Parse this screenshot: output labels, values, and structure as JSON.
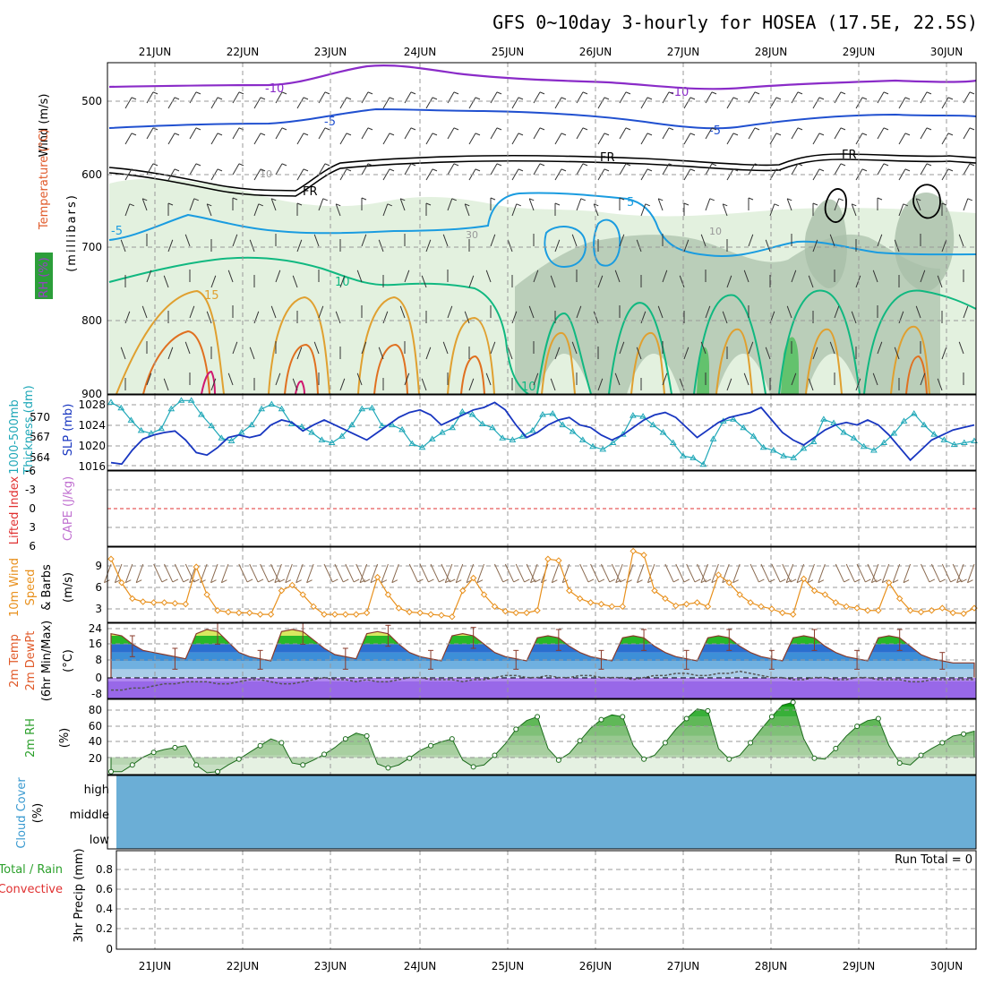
{
  "title": "GFS 0~10day 3-hourly for HOSEA (17.5E, 22.5S)",
  "dates": [
    "21JUN",
    "22JUN",
    "23JUN",
    "24JUN",
    "25JUN",
    "26JUN",
    "27JUN",
    "28JUN",
    "29JUN",
    "30JUN"
  ],
  "colors": {
    "rh_fill": "#dff0dc",
    "rh_dark": "#a9bfa9",
    "temp_neg10": "#8a2bc8",
    "temp_neg5": "#2050d0",
    "temp_5": "#1a9ce0",
    "temp_10": "#10b880",
    "temp_15": "#e0a030",
    "temp_20": "#e07020",
    "thickness": "#20a8b8",
    "slp": "#1836c0",
    "wind": "#e8901c",
    "precip_frame": "#ffffff",
    "cloud": "#6baed6"
  },
  "panels": {
    "upper": {
      "ylabel_wind": "Wind (m/s)",
      "ylabel_temp": "Temperature (°C)",
      "ylabel_rh": "RH (%)",
      "ylabel_press": "(millibars)",
      "ticks": [
        "500",
        "600",
        "700",
        "800",
        "900"
      ],
      "contour_labels": {
        "m10a": "-10",
        "m10b": "-10",
        "m5a": "-5",
        "m5b": "-5",
        "m5c": "-5",
        "p5": "5",
        "p10a": "10",
        "p10b": "10",
        "p15": "15",
        "fr1": "FR",
        "fr2": "FR",
        "fr3": "FR",
        "rh10": "10",
        "rh30": "30",
        "rh10b": "10"
      }
    },
    "thick": {
      "ylabel1": "1000-500mb",
      "ylabel2": "Thickness (dm)",
      "ylabel3": "SLP (mb)",
      "ticks_left": [
        "570",
        "567",
        "564"
      ],
      "ticks_right": [
        "1028",
        "1024",
        "1020",
        "1016"
      ]
    },
    "cape": {
      "ylabel1": "Lifted Index",
      "ylabel2": "CAPE (J/kg)",
      "ticks": [
        "-6",
        "-3",
        "0",
        "3",
        "6"
      ]
    },
    "wind10": {
      "ylabel1": "10m Wind",
      "ylabel2": "Speed",
      "ylabel3": "& Barbs",
      "ylabel4": "(m/s)",
      "ticks": [
        "9",
        "6",
        "3"
      ]
    },
    "temp2m": {
      "ylabel1": "2m Temp",
      "ylabel2": "2m DewPt",
      "ylabel3": "(6hr Min/Max)",
      "ylabel4": "(°C)",
      "ticks": [
        "24",
        "16",
        "8",
        "0",
        "-8"
      ]
    },
    "rh2m": {
      "ylabel1": "2m RH",
      "ylabel2": "(%)",
      "ticks": [
        "80",
        "60",
        "40",
        "20"
      ]
    },
    "cloud": {
      "ylabel1": "Cloud Cover",
      "ylabel2": "(%)",
      "levels": [
        "high",
        "middle",
        "low"
      ]
    },
    "precip": {
      "ylabel1": "Total / Rain",
      "ylabel2": "Convective",
      "ylabel3": "3hr Precip (mm)",
      "ticks": [
        "0.8",
        "0.6",
        "0.4",
        "0.2",
        "0"
      ],
      "run_total": "Run Total = 0"
    }
  },
  "chart_data": [
    {
      "type": "line",
      "panel": "Thickness / SLP",
      "series": [
        {
          "name": "1000-500mb Thickness (dm)",
          "values": [
            570.2,
            569.6,
            568.3,
            567.2,
            566.9,
            567.4,
            569.5,
            570.4,
            570.4,
            568.9,
            567.7,
            566.4,
            566.1,
            567.0,
            567.8,
            569.5,
            570.0,
            569.5,
            567.9,
            567.6,
            567.0,
            566.2,
            565.9,
            566.6,
            567.8,
            569.5,
            569.6,
            567.7,
            567.8,
            567.3,
            565.8,
            565.4,
            566.3,
            567.0,
            567.5,
            569.2,
            568.9,
            567.9,
            567.5,
            566.4,
            566.2,
            566.6,
            567.2,
            568.9,
            569.0,
            567.8,
            567.1,
            566.2,
            565.5,
            565.2,
            565.9,
            566.8,
            568.8,
            568.7,
            567.8,
            567.0,
            565.9,
            564.5,
            564.3,
            563.6,
            566.3,
            568.2,
            568.4,
            567.5,
            566.6,
            565.4,
            565.1,
            564.5,
            564.3,
            565.3,
            566.0,
            568.4,
            568.0,
            567.0,
            566.4,
            565.5,
            565.1,
            565.9,
            566.9,
            568.2,
            569.0,
            567.8,
            566.8,
            566.2,
            565.7,
            565.9,
            566.1
          ]
        },
        {
          "name": "SLP (mb)",
          "values": [
            1016.5,
            1016.2,
            1019.0,
            1021.2,
            1022.0,
            1022.5,
            1022.8,
            1021.0,
            1018.5,
            1018.0,
            1019.5,
            1021.5,
            1022.0,
            1021.5,
            1022.0,
            1024.0,
            1025.0,
            1024.5,
            1022.8,
            1024.0,
            1025.0,
            1024.0,
            1023.0,
            1022.0,
            1021.0,
            1022.5,
            1024.0,
            1025.5,
            1026.5,
            1027.0,
            1026.0,
            1024.0,
            1025.0,
            1026.0,
            1027.0,
            1027.5,
            1028.5,
            1027.0,
            1024.0,
            1021.5,
            1022.5,
            1024.0,
            1025.0,
            1025.5,
            1024.0,
            1023.5,
            1022.0,
            1021.0,
            1022.0,
            1023.5,
            1025.0,
            1026.0,
            1026.5,
            1025.5,
            1023.5,
            1021.5,
            1023.0,
            1024.5,
            1025.5,
            1026.0,
            1026.5,
            1027.5,
            1025.0,
            1022.5,
            1021.0,
            1020.0,
            1021.5,
            1023.0,
            1024.0,
            1024.5,
            1024.0,
            1025.0,
            1024.0,
            1022.0,
            1019.5,
            1017.0,
            1019.0,
            1021.0,
            1022.0,
            1023.0,
            1023.5,
            1024.0
          ]
        }
      ],
      "ylim_left": [
        563,
        571
      ],
      "ylim_right": [
        1015,
        1030
      ]
    },
    {
      "type": "line",
      "panel": "10m Wind Speed",
      "series": [
        {
          "name": "10m Wind Speed (m/s)",
          "values": [
            9.0,
            6.0,
            4.0,
            3.6,
            3.5,
            3.5,
            3.4,
            3.3,
            8.0,
            4.5,
            2.5,
            2.3,
            2.2,
            2.2,
            2.0,
            2.0,
            5.0,
            5.7,
            4.5,
            3.0,
            2.0,
            2.0,
            2.0,
            2.0,
            2.2,
            6.7,
            4.5,
            2.8,
            2.3,
            2.2,
            2.0,
            1.9,
            1.7,
            5.0,
            6.6,
            4.5,
            3.0,
            2.4,
            2.2,
            2.2,
            2.5,
            9.0,
            8.8,
            5.0,
            4.0,
            3.5,
            3.3,
            3.0,
            3.0,
            10.0,
            9.5,
            5.0,
            4.0,
            3.1,
            3.3,
            3.5,
            3.0,
            7.0,
            6.0,
            4.5,
            3.5,
            3.0,
            2.7,
            2.2,
            2.0,
            6.5,
            5.0,
            4.5,
            3.5,
            3.0,
            2.8,
            2.5,
            2.5,
            6.0,
            4.0,
            2.5,
            2.3,
            2.5,
            2.8,
            2.2,
            2.1,
            2.8
          ]
        }
      ],
      "ylim": [
        1,
        10.5
      ]
    },
    {
      "type": "area",
      "panel": "2m Temp / DewPt",
      "series": [
        {
          "name": "2m Temp (°C)",
          "values": [
            21,
            20,
            16,
            13,
            12,
            11,
            10,
            9,
            21,
            23,
            22,
            17,
            12,
            10,
            9,
            8,
            22,
            23,
            22,
            18,
            14,
            11,
            10,
            9,
            21,
            22,
            21,
            16,
            12,
            10,
            9,
            8,
            20,
            21,
            20,
            16,
            12,
            10,
            9,
            8,
            19,
            20,
            19,
            15,
            12,
            10,
            9,
            8,
            19,
            20,
            19,
            15,
            12,
            10,
            9,
            8,
            19,
            20,
            19,
            15,
            12,
            10,
            9,
            8,
            19,
            20,
            19,
            15,
            12,
            10,
            9,
            8,
            19,
            20,
            19,
            15,
            11,
            9,
            8,
            7,
            7,
            7
          ]
        },
        {
          "name": "2m DewPt (°C)",
          "values": [
            -6,
            -6,
            -5,
            -5,
            -4,
            -3,
            -3,
            -2,
            -2,
            -2,
            -3,
            -3,
            -2,
            -1,
            -1,
            -2,
            -3,
            -3,
            -2,
            -1,
            0,
            -1,
            -1,
            -2,
            -1,
            -2,
            -2,
            -1,
            0,
            0,
            -1,
            -1,
            -1,
            -2,
            -1,
            -1,
            0,
            1,
            1,
            0,
            0,
            1,
            0,
            0,
            1,
            1,
            0,
            0,
            0,
            -1,
            0,
            1,
            1,
            2,
            2,
            1,
            1,
            2,
            2,
            3,
            2,
            1,
            0,
            0,
            -1,
            -1,
            0,
            0,
            -1,
            -1,
            0,
            0,
            -1,
            -1,
            -1,
            -2,
            -2,
            -1,
            -1,
            -1,
            -1,
            -1
          ]
        }
      ],
      "ylim": [
        -10,
        26
      ]
    },
    {
      "type": "area",
      "panel": "2m RH",
      "series": [
        {
          "name": "2m RH (%)",
          "values": [
            13,
            13,
            20,
            28,
            33,
            36,
            38,
            40,
            20,
            12,
            13,
            20,
            26,
            33,
            40,
            47,
            43,
            22,
            20,
            25,
            31,
            38,
            47,
            53,
            50,
            21,
            17,
            20,
            27,
            35,
            40,
            44,
            47,
            25,
            18,
            20,
            30,
            42,
            57,
            66,
            70,
            37,
            25,
            32,
            45,
            58,
            67,
            72,
            70,
            40,
            26,
            30,
            43,
            57,
            68,
            78,
            76,
            37,
            26,
            30,
            43,
            57,
            70,
            82,
            85,
            47,
            27,
            26,
            37,
            50,
            60,
            66,
            68,
            40,
            22,
            20,
            30,
            37,
            43,
            50,
            52,
            55
          ]
        }
      ],
      "ylim": [
        10,
        88
      ]
    },
    {
      "type": "bar",
      "panel": "3hr Precip",
      "values": [],
      "ylim": [
        0,
        1
      ]
    }
  ]
}
